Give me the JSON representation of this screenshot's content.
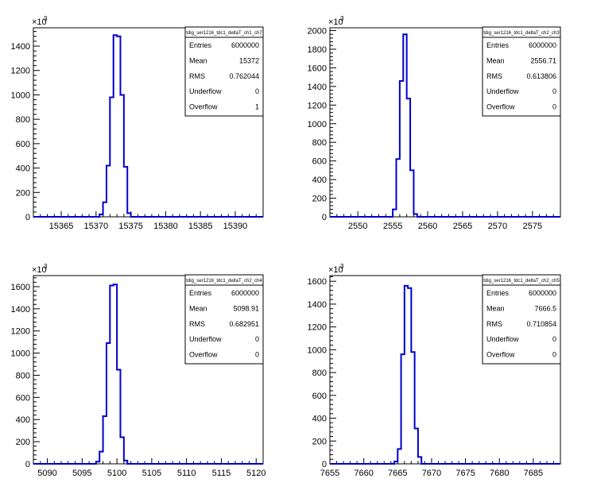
{
  "chart_data": [
    {
      "type": "bar",
      "title": "tdig_ser1216_tdc1_deltaT_ch1_ch7",
      "xlim": [
        15361,
        15394
      ],
      "ylim": [
        0,
        1550
      ],
      "xticks": [
        15365,
        15370,
        15375,
        15380,
        15385,
        15390
      ],
      "yticks": [
        0,
        200,
        400,
        600,
        800,
        1000,
        1200,
        1400
      ],
      "y_multiplier_label": "×10",
      "y_multiplier_exp": "3",
      "bin_width": 0.5,
      "bins": [
        [
          15370.5,
          20
        ],
        [
          15371.0,
          120
        ],
        [
          15371.5,
          420
        ],
        [
          15372.0,
          980
        ],
        [
          15372.5,
          1490
        ],
        [
          15373.0,
          1480
        ],
        [
          15373.5,
          1000
        ],
        [
          15374.0,
          410
        ],
        [
          15374.5,
          30
        ],
        [
          15375.0,
          0
        ]
      ],
      "stats": [
        {
          "label": "Entries",
          "value": "6000000"
        },
        {
          "label": "Mean",
          "value": "15372"
        },
        {
          "label": "RMS",
          "value": "0.762044"
        },
        {
          "label": "Underflow",
          "value": "0"
        },
        {
          "label": "Overflow",
          "value": "1"
        }
      ]
    },
    {
      "type": "bar",
      "title": "tdig_ser1216_tdc1_deltaT_ch2_ch3",
      "xlim": [
        2546,
        2579
      ],
      "ylim": [
        0,
        2030
      ],
      "xticks": [
        2550,
        2555,
        2560,
        2565,
        2570,
        2575
      ],
      "yticks": [
        0,
        200,
        400,
        600,
        800,
        1000,
        1200,
        1400,
        1600,
        1800,
        2000
      ],
      "y_multiplier_label": "×10",
      "y_multiplier_exp": "3",
      "bin_width": 0.5,
      "bins": [
        [
          2555.0,
          80
        ],
        [
          2555.5,
          620
        ],
        [
          2556.0,
          1460
        ],
        [
          2556.5,
          1960
        ],
        [
          2557.0,
          1270
        ],
        [
          2557.5,
          500
        ],
        [
          2558.0,
          30
        ],
        [
          2558.5,
          0
        ]
      ],
      "stats": [
        {
          "label": "Entries",
          "value": "6000000"
        },
        {
          "label": "Mean",
          "value": "2556.71"
        },
        {
          "label": "RMS",
          "value": "0.613806"
        },
        {
          "label": "Underflow",
          "value": "0"
        },
        {
          "label": "Overflow",
          "value": "0"
        }
      ]
    },
    {
      "type": "bar",
      "title": "tdig_ser1216_tdc1_deltaT_ch2_ch4",
      "xlim": [
        5088,
        5121
      ],
      "ylim": [
        0,
        1700
      ],
      "xticks": [
        5090,
        5095,
        5100,
        5105,
        5110,
        5115,
        5120
      ],
      "yticks": [
        0,
        200,
        400,
        600,
        800,
        1000,
        1200,
        1400,
        1600
      ],
      "y_multiplier_label": "×10",
      "y_multiplier_exp": "3",
      "bin_width": 0.5,
      "bins": [
        [
          5097.0,
          20
        ],
        [
          5097.5,
          110
        ],
        [
          5098.0,
          430
        ],
        [
          5098.5,
          1090
        ],
        [
          5099.0,
          1610
        ],
        [
          5099.5,
          1620
        ],
        [
          5100.0,
          850
        ],
        [
          5100.5,
          240
        ],
        [
          5101.0,
          30
        ],
        [
          5101.5,
          0
        ]
      ],
      "stats": [
        {
          "label": "Entries",
          "value": "6000000"
        },
        {
          "label": "Mean",
          "value": "5098.91"
        },
        {
          "label": "RMS",
          "value": "0.682951"
        },
        {
          "label": "Underflow",
          "value": "0"
        },
        {
          "label": "Overflow",
          "value": "0"
        }
      ]
    },
    {
      "type": "bar",
      "title": "tdig_ser1216_tdc1_deltaT_ch2_ch5",
      "xlim": [
        7655,
        7689
      ],
      "ylim": [
        0,
        1650
      ],
      "xticks": [
        7655,
        7660,
        7665,
        7670,
        7675,
        7680,
        7685
      ],
      "yticks": [
        0,
        200,
        400,
        600,
        800,
        1000,
        1200,
        1400,
        1600
      ],
      "y_multiplier_label": "×10",
      "y_multiplier_exp": "3",
      "bin_width": 0.5,
      "bins": [
        [
          7664.5,
          20
        ],
        [
          7665.0,
          130
        ],
        [
          7665.5,
          960
        ],
        [
          7666.0,
          1560
        ],
        [
          7666.5,
          1540
        ],
        [
          7667.0,
          980
        ],
        [
          7667.5,
          310
        ],
        [
          7668.0,
          60
        ],
        [
          7668.5,
          0
        ]
      ],
      "stats": [
        {
          "label": "Entries",
          "value": "6000000"
        },
        {
          "label": "Mean",
          "value": "7666.5"
        },
        {
          "label": "RMS",
          "value": "0.710854"
        },
        {
          "label": "Underflow",
          "value": "0"
        },
        {
          "label": "Overflow",
          "value": "0"
        }
      ]
    }
  ]
}
